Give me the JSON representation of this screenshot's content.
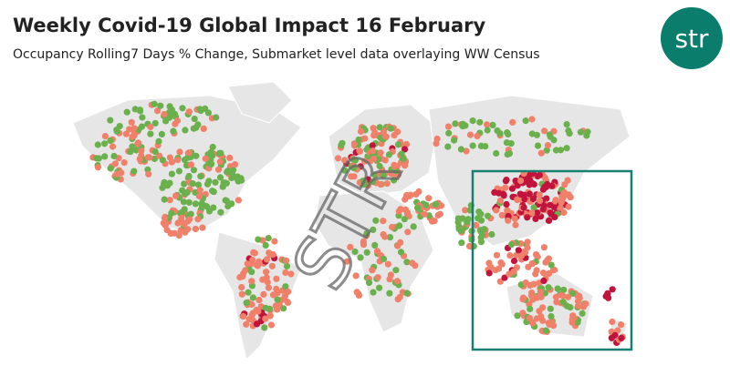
{
  "header": {
    "title": "Weekly Covid-19 Global Impact 16 February",
    "subtitle": "Occupancy Rolling7 Days % Change, Submarket level data overlaying WW Census"
  },
  "logo": {
    "text": "str"
  },
  "watermark": "STR"
}
